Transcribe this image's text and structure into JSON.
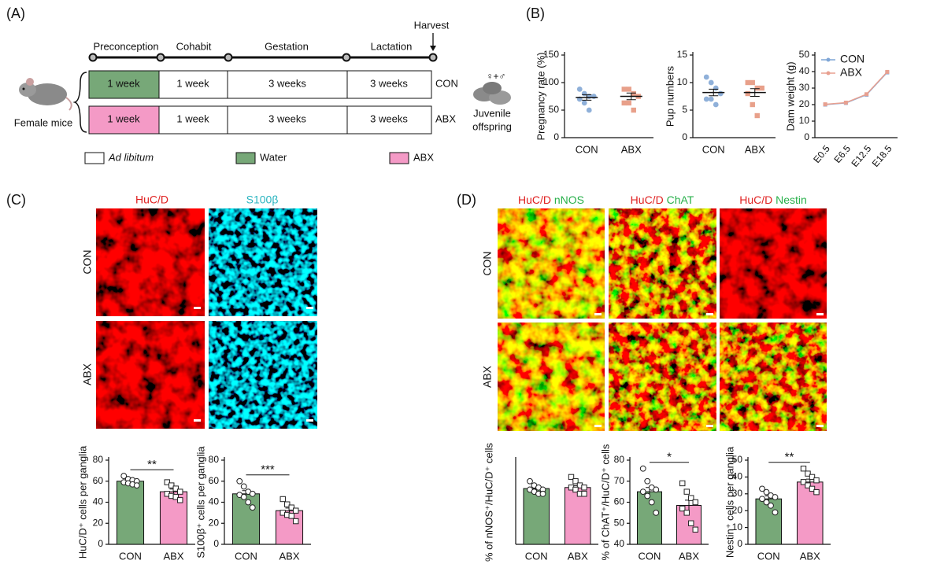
{
  "panel_labels": [
    "(A)",
    "(B)",
    "(C)",
    "(D)"
  ],
  "panel_a": {
    "phases": [
      "Preconception",
      "Cohabit",
      "Gestation",
      "Lactation"
    ],
    "harvest": "Harvest",
    "rows": [
      {
        "label": "CON",
        "cells": [
          "1 week",
          "1 week",
          "3 weeks",
          "3 weeks"
        ]
      },
      {
        "label": "ABX",
        "cells": [
          "1 week",
          "1 week",
          "3 weeks",
          "3 weeks"
        ]
      }
    ],
    "female": "Female mice",
    "sex_symbol": "♀+♂",
    "offspring": [
      "Juvenile",
      "offspring"
    ],
    "legend": [
      "Ad libitum",
      "Water",
      "ABX"
    ]
  },
  "panel_c": {
    "stains": [
      "HuC/D",
      "S100β"
    ],
    "groups": [
      "CON",
      "ABX"
    ]
  },
  "panel_d": {
    "stains": [
      [
        "HuC/D",
        "nNOS"
      ],
      [
        "HuC/D",
        "ChAT"
      ],
      [
        "HuC/D",
        "Nestin"
      ]
    ],
    "groups": [
      "CON",
      "ABX"
    ]
  },
  "chart_data": [
    {
      "type": "dot",
      "ylabel": "Pregnancy rate (%)",
      "categories": [
        "CON",
        "ABX"
      ],
      "values": [
        73,
        75
      ],
      "errors": [
        5,
        6
      ],
      "points": [
        [
          88,
          80,
          75,
          75,
          70,
          63,
          50
        ],
        [
          88,
          88,
          80,
          75,
          63,
          63,
          50
        ]
      ],
      "colors": [
        "#8fb0d9",
        "#e8a08a"
      ],
      "markers": [
        "circle",
        "square"
      ],
      "ylim": [
        0,
        150
      ],
      "yticks": [
        0,
        50,
        100,
        150
      ]
    },
    {
      "type": "dot",
      "ylabel": "Pup numbers",
      "categories": [
        "CON",
        "ABX"
      ],
      "values": [
        8.2,
        8.2
      ],
      "errors": [
        0.6,
        0.7
      ],
      "points": [
        [
          11,
          10,
          9,
          8,
          7,
          7,
          6
        ],
        [
          10,
          10,
          9,
          9,
          8,
          6,
          4
        ]
      ],
      "colors": [
        "#8fb0d9",
        "#e8a08a"
      ],
      "markers": [
        "circle",
        "square"
      ],
      "ylim": [
        0,
        15
      ],
      "yticks": [
        0,
        5,
        10,
        15
      ]
    },
    {
      "type": "line",
      "ylabel": "Dam weight (g)",
      "categories": [
        "E0.5",
        "E6.5",
        "E12.5",
        "E18.5"
      ],
      "series": [
        {
          "name": "CON",
          "color": "#7fa6d6",
          "values": [
            20,
            21,
            26,
            39.5
          ]
        },
        {
          "name": "ABX",
          "color": "#e8a090",
          "values": [
            20.2,
            21.2,
            26.3,
            39.8
          ]
        }
      ],
      "ylim": [
        0,
        50
      ],
      "yticks": [
        0,
        10,
        20,
        30,
        40,
        50
      ],
      "legend": "upper left"
    },
    {
      "type": "bar",
      "ylabel": "HuC/D⁺ cells per ganglia",
      "categories": [
        "CON",
        "ABX"
      ],
      "values": [
        60,
        50
      ],
      "errors": [
        1.5,
        2.5
      ],
      "points": [
        [
          65,
          62,
          61,
          60,
          59,
          58,
          57,
          56
        ],
        [
          59,
          56,
          53,
          50,
          48,
          46,
          45,
          42
        ]
      ],
      "colors": [
        "#77a878",
        "#f49ac6"
      ],
      "markers": [
        "circle",
        "square"
      ],
      "ylim": [
        0,
        80
      ],
      "yticks": [
        0,
        20,
        40,
        60,
        80
      ],
      "significance": "**"
    },
    {
      "type": "bar",
      "ylabel": "S100β⁺ cells per ganglia",
      "categories": [
        "CON",
        "ABX"
      ],
      "values": [
        48,
        32
      ],
      "errors": [
        3,
        2.5
      ],
      "points": [
        [
          60,
          55,
          50,
          48,
          47,
          45,
          40,
          35
        ],
        [
          43,
          38,
          35,
          32,
          30,
          28,
          27,
          22
        ]
      ],
      "colors": [
        "#77a878",
        "#f49ac6"
      ],
      "markers": [
        "circle",
        "square"
      ],
      "ylim": [
        0,
        80
      ],
      "yticks": [
        0,
        20,
        40,
        60,
        80
      ],
      "significance": "***"
    },
    {
      "type": "bar",
      "ylabel": "% of nNOS⁺/HuC/D⁺ cells",
      "categories": [
        "CON",
        "ABX"
      ],
      "values": [
        26.5,
        27
      ],
      "errors": [
        0.8,
        0.9
      ],
      "points": [
        [
          30,
          28,
          27,
          26,
          26,
          25,
          24,
          24
        ],
        [
          32,
          30,
          28,
          27,
          27,
          26,
          24,
          24
        ]
      ],
      "colors": [
        "#77a878",
        "#f49ac6"
      ],
      "markers": [
        "circle",
        "square"
      ],
      "ylim": [
        0,
        40
      ]
    },
    {
      "type": "bar",
      "ylabel": "% of ChAT⁺/HuC/D⁺ cells",
      "categories": [
        "CON",
        "ABX"
      ],
      "values": [
        65,
        58.5
      ],
      "errors": [
        2,
        2.5
      ],
      "points": [
        [
          76,
          70,
          67,
          66,
          65,
          63,
          60,
          55
        ],
        [
          69,
          65,
          62,
          60,
          57,
          55,
          50,
          47
        ]
      ],
      "colors": [
        "#77a878",
        "#f49ac6"
      ],
      "markers": [
        "circle",
        "square"
      ],
      "ylim": [
        40,
        80
      ],
      "yticks": [
        40,
        50,
        60,
        70,
        80
      ],
      "significance": "*"
    },
    {
      "type": "bar",
      "ylabel": "Nestin⁺ cells per ganglia",
      "categories": [
        "CON",
        "ABX"
      ],
      "values": [
        27,
        37
      ],
      "errors": [
        1.8,
        1.7
      ],
      "points": [
        [
          33,
          31,
          29,
          28,
          27,
          25,
          23,
          19
        ],
        [
          45,
          42,
          40,
          38,
          37,
          35,
          33,
          31
        ]
      ],
      "colors": [
        "#77a878",
        "#f49ac6"
      ],
      "markers": [
        "circle",
        "square"
      ],
      "ylim": [
        0,
        50
      ],
      "yticks": [
        0,
        10,
        20,
        30,
        40,
        50
      ],
      "significance": "**"
    }
  ]
}
